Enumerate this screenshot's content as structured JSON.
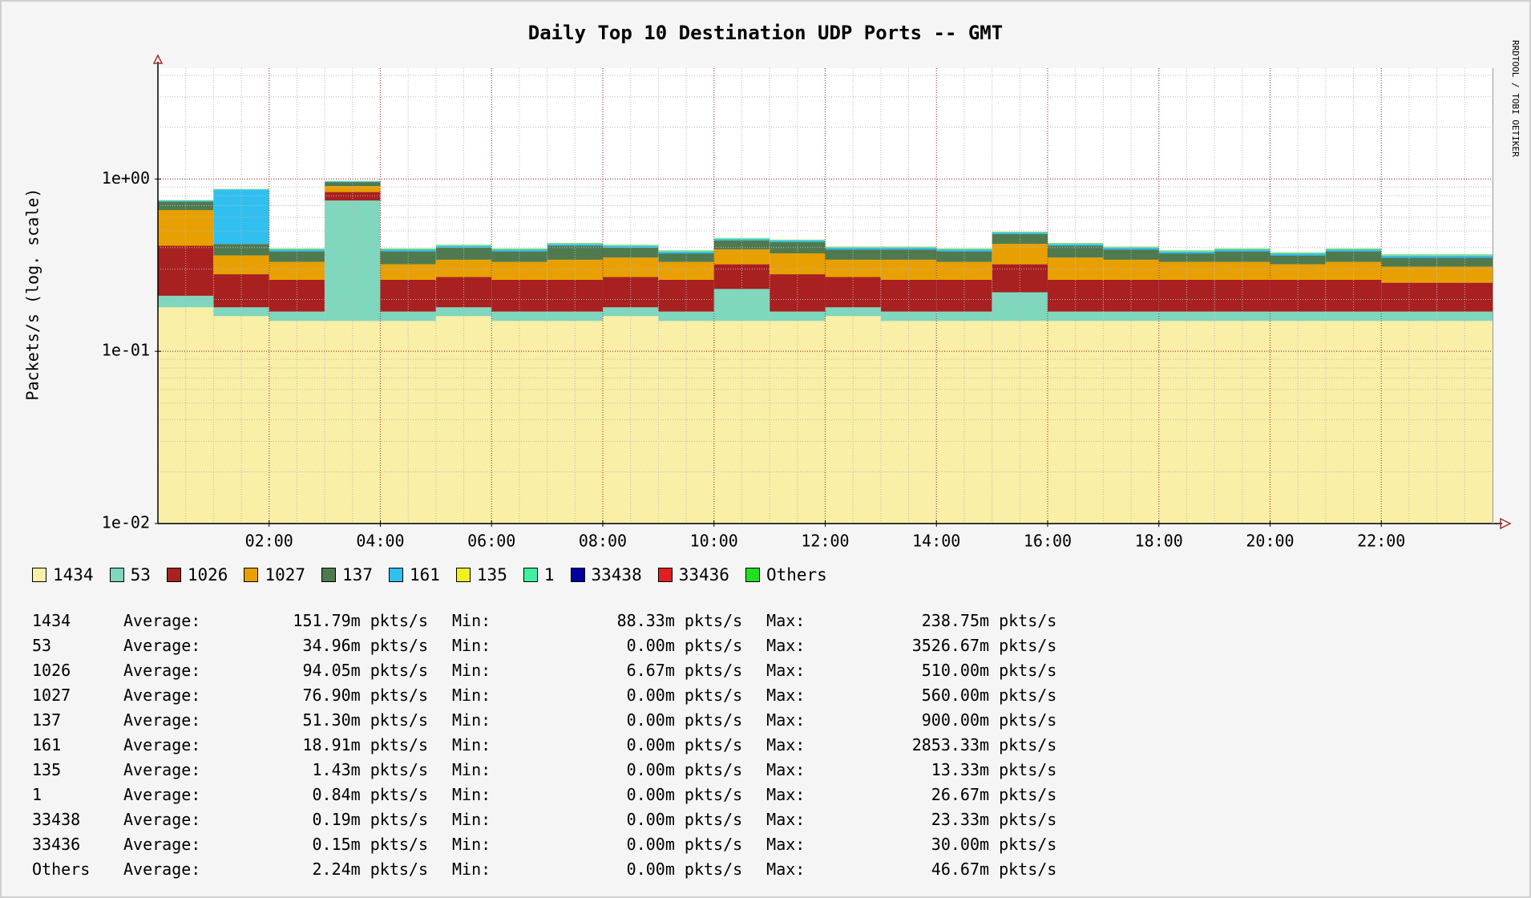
{
  "chart_data": {
    "type": "stacked_bar",
    "title": "Daily Top 10 Destination UDP Ports -- GMT",
    "y_label": "Packets/s (log. scale)",
    "side_text": "RRDTOOL / TOBI OETIKER",
    "log_scale": true,
    "grid": true,
    "xlim": [
      0,
      24
    ],
    "ylim": [
      0.01,
      4.4
    ],
    "xticks": [
      {
        "value": 2,
        "label": "02:00"
      },
      {
        "value": 4,
        "label": "04:00"
      },
      {
        "value": 6,
        "label": "06:00"
      },
      {
        "value": 8,
        "label": "08:00"
      },
      {
        "value": 10,
        "label": "10:00"
      },
      {
        "value": 12,
        "label": "12:00"
      },
      {
        "value": 14,
        "label": "14:00"
      },
      {
        "value": 16,
        "label": "16:00"
      },
      {
        "value": 18,
        "label": "18:00"
      },
      {
        "value": 20,
        "label": "20:00"
      },
      {
        "value": 22,
        "label": "22:00"
      }
    ],
    "x_minor_ticks": [
      0.5,
      1,
      1.5,
      2.5,
      3,
      3.5,
      4.5,
      5,
      5.5,
      6.5,
      7,
      7.5,
      8.5,
      9,
      9.5,
      10.5,
      11,
      11.5,
      12.5,
      13,
      13.5,
      14.5,
      15,
      15.5,
      16.5,
      17,
      17.5,
      18.5,
      19,
      19.5,
      20.5,
      21,
      21.5,
      22.5,
      23,
      23.5
    ],
    "yticks": [
      {
        "value": 0.01,
        "label": "1e-02"
      },
      {
        "value": 0.1,
        "label": "1e-01"
      },
      {
        "value": 1,
        "label": "1e+00"
      }
    ],
    "y_minor_ticks": [
      0.02,
      0.03,
      0.04,
      0.05,
      0.06,
      0.07,
      0.08,
      0.09,
      0.2,
      0.3,
      0.4,
      0.5,
      0.6,
      0.7,
      0.8,
      0.9,
      2,
      3,
      4
    ],
    "x": [
      0.5,
      1.5,
      2.5,
      3.5,
      4.5,
      5.5,
      6.5,
      7.5,
      8.5,
      9.5,
      10.5,
      11.5,
      12.5,
      13.5,
      14.5,
      15.5,
      16.5,
      17.5,
      18.5,
      19.5,
      20.5,
      21.5,
      22.5,
      23.5
    ],
    "series": [
      {
        "name": "1434",
        "color": "#f9efa6",
        "values": [
          0.18,
          0.16,
          0.15,
          0.15,
          0.15,
          0.16,
          0.15,
          0.15,
          0.16,
          0.15,
          0.15,
          0.15,
          0.16,
          0.15,
          0.15,
          0.15,
          0.15,
          0.15,
          0.15,
          0.15,
          0.15,
          0.15,
          0.15,
          0.15
        ]
      },
      {
        "name": "53",
        "color": "#7fd7be",
        "values": [
          0.03,
          0.02,
          0.02,
          0.6,
          0.02,
          0.02,
          0.02,
          0.02,
          0.02,
          0.02,
          0.08,
          0.02,
          0.02,
          0.02,
          0.02,
          0.07,
          0.02,
          0.02,
          0.02,
          0.02,
          0.02,
          0.02,
          0.02,
          0.02
        ]
      },
      {
        "name": "1026",
        "color": "#a82020",
        "values": [
          0.2,
          0.1,
          0.09,
          0.09,
          0.09,
          0.09,
          0.09,
          0.09,
          0.09,
          0.09,
          0.09,
          0.11,
          0.09,
          0.09,
          0.09,
          0.1,
          0.09,
          0.09,
          0.09,
          0.09,
          0.09,
          0.09,
          0.08,
          0.08
        ]
      },
      {
        "name": "1027",
        "color": "#e8a000",
        "values": [
          0.25,
          0.08,
          0.07,
          0.07,
          0.06,
          0.07,
          0.07,
          0.08,
          0.08,
          0.07,
          0.07,
          0.09,
          0.07,
          0.08,
          0.07,
          0.1,
          0.09,
          0.08,
          0.07,
          0.07,
          0.06,
          0.07,
          0.06,
          0.06
        ]
      },
      {
        "name": "137",
        "color": "#4f7a4f",
        "values": [
          0.08,
          0.06,
          0.05,
          0.05,
          0.06,
          0.06,
          0.05,
          0.07,
          0.05,
          0.04,
          0.05,
          0.06,
          0.05,
          0.05,
          0.05,
          0.06,
          0.06,
          0.05,
          0.04,
          0.05,
          0.04,
          0.05,
          0.04,
          0.04
        ]
      },
      {
        "name": "161",
        "color": "#30c0f0",
        "values": [
          0.01,
          0.45,
          0.01,
          0.01,
          0.01,
          0.01,
          0.01,
          0.01,
          0.01,
          0.01,
          0.01,
          0.01,
          0.01,
          0.01,
          0.01,
          0.01,
          0.01,
          0.01,
          0.01,
          0.01,
          0.01,
          0.01,
          0.01,
          0.01
        ]
      },
      {
        "name": "135",
        "color": "#f0f020",
        "values": [
          0.0014,
          0.0014,
          0.0014,
          0.0014,
          0.0014,
          0.0014,
          0.0014,
          0.0014,
          0.0014,
          0.0014,
          0.0014,
          0.0014,
          0.0014,
          0.0014,
          0.0014,
          0.0014,
          0.0014,
          0.0014,
          0.0014,
          0.0014,
          0.0014,
          0.0014,
          0.0014,
          0.0014
        ]
      },
      {
        "name": "1",
        "color": "#40f0a0",
        "values": [
          0.0008,
          0.0008,
          0.0008,
          0.0008,
          0.0008,
          0.0008,
          0.0008,
          0.0008,
          0.0008,
          0.0008,
          0.0008,
          0.0008,
          0.0008,
          0.0008,
          0.0008,
          0.0008,
          0.0008,
          0.0008,
          0.0008,
          0.0008,
          0.0008,
          0.0008,
          0.0008,
          0.0008
        ]
      },
      {
        "name": "33438",
        "color": "#0000a0",
        "values": [
          0.0002,
          0.0002,
          0.0002,
          0.0002,
          0.0002,
          0.0002,
          0.0002,
          0.0002,
          0.0002,
          0.0002,
          0.0002,
          0.0002,
          0.0002,
          0.0002,
          0.0002,
          0.0002,
          0.0002,
          0.0002,
          0.0002,
          0.0002,
          0.0002,
          0.0002,
          0.0002,
          0.0002
        ]
      },
      {
        "name": "33436",
        "color": "#e02020",
        "values": [
          0.00015,
          0.00015,
          0.00015,
          0.00015,
          0.00015,
          0.00015,
          0.00015,
          0.00015,
          0.00015,
          0.00015,
          0.00015,
          0.00015,
          0.00015,
          0.00015,
          0.00015,
          0.00015,
          0.00015,
          0.00015,
          0.00015,
          0.00015,
          0.00015,
          0.00015,
          0.00015,
          0.00015
        ]
      },
      {
        "name": "Others",
        "color": "#20e020",
        "values": [
          0.002,
          0.002,
          0.002,
          0.002,
          0.002,
          0.002,
          0.002,
          0.002,
          0.002,
          0.002,
          0.002,
          0.002,
          0.002,
          0.002,
          0.002,
          0.002,
          0.002,
          0.002,
          0.002,
          0.002,
          0.002,
          0.002,
          0.002,
          0.002
        ]
      }
    ],
    "stats_labels": {
      "average": "Average:",
      "min": "Min:",
      "max": "Max:"
    },
    "stats": [
      {
        "average": "151.79m pkts/s",
        "min": "88.33m pkts/s",
        "max": "238.75m pkts/s"
      },
      {
        "average": "34.96m pkts/s",
        "min": "0.00m pkts/s",
        "max": "3526.67m pkts/s"
      },
      {
        "average": "94.05m pkts/s",
        "min": "6.67m pkts/s",
        "max": "510.00m pkts/s"
      },
      {
        "average": "76.90m pkts/s",
        "min": "0.00m pkts/s",
        "max": "560.00m pkts/s"
      },
      {
        "average": "51.30m pkts/s",
        "min": "0.00m pkts/s",
        "max": "900.00m pkts/s"
      },
      {
        "average": "18.91m pkts/s",
        "min": "0.00m pkts/s",
        "max": "2853.33m pkts/s"
      },
      {
        "average": "1.43m pkts/s",
        "min": "0.00m pkts/s",
        "max": "13.33m pkts/s"
      },
      {
        "average": "0.84m pkts/s",
        "min": "0.00m pkts/s",
        "max": "26.67m pkts/s"
      },
      {
        "average": "0.19m pkts/s",
        "min": "0.00m pkts/s",
        "max": "23.33m pkts/s"
      },
      {
        "average": "0.15m pkts/s",
        "min": "0.00m pkts/s",
        "max": "30.00m pkts/s"
      },
      {
        "average": "2.24m pkts/s",
        "min": "0.00m pkts/s",
        "max": "46.67m pkts/s"
      }
    ]
  }
}
